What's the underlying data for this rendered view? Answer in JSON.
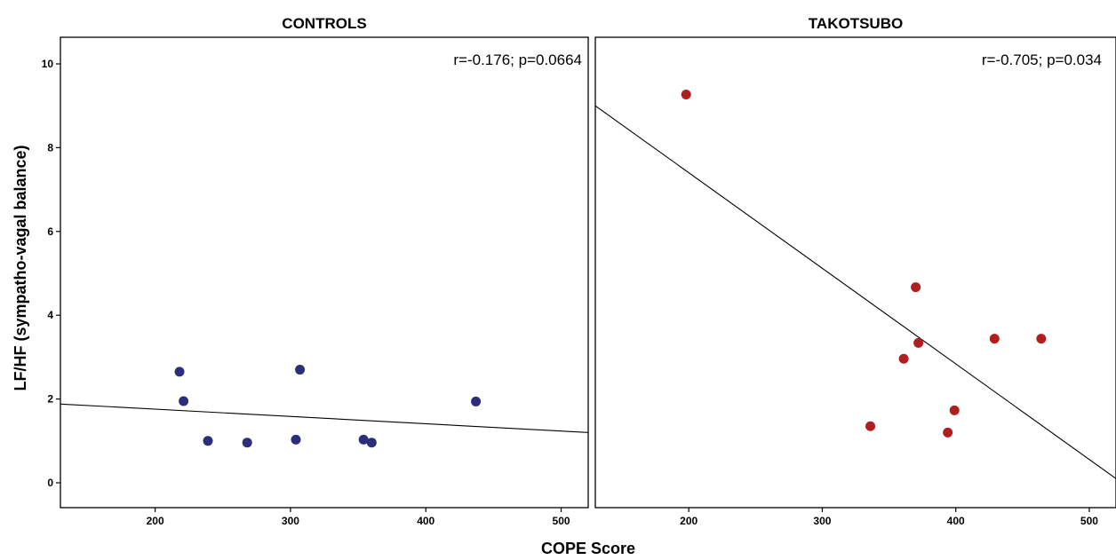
{
  "chart_data": {
    "type": "scatter",
    "xlabel": "COPE Score",
    "ylabel": "LF/HF (sympatho-vagal balance)",
    "xlim": [
      130,
      520
    ],
    "ylim": [
      -0.6,
      10.6
    ],
    "xticks": [
      200,
      300,
      400,
      500
    ],
    "yticks": [
      0,
      2,
      4,
      6,
      8,
      10
    ],
    "grid": false,
    "legend": "none",
    "panels": [
      {
        "title": "CONTROLS",
        "annotation": "r=-0.176; p=0.0664",
        "marker_color": "#2b2e7a",
        "points": [
          {
            "x": 218,
            "y": 2.65
          },
          {
            "x": 221,
            "y": 1.95
          },
          {
            "x": 239,
            "y": 1.0
          },
          {
            "x": 268,
            "y": 0.96
          },
          {
            "x": 304,
            "y": 1.03
          },
          {
            "x": 307,
            "y": 2.7
          },
          {
            "x": 354,
            "y": 1.03
          },
          {
            "x": 360,
            "y": 0.96
          },
          {
            "x": 437,
            "y": 1.94
          }
        ],
        "fit_line": [
          {
            "x": 130,
            "y": 1.88
          },
          {
            "x": 520,
            "y": 1.2
          }
        ]
      },
      {
        "title": "TAKOTSUBO",
        "annotation": "r=-0.705; p=0.034",
        "marker_color": "#b01e1e",
        "points": [
          {
            "x": 198,
            "y": 9.27
          },
          {
            "x": 336,
            "y": 1.35
          },
          {
            "x": 361,
            "y": 2.96
          },
          {
            "x": 370,
            "y": 4.67
          },
          {
            "x": 372,
            "y": 3.34
          },
          {
            "x": 394,
            "y": 1.2
          },
          {
            "x": 399,
            "y": 1.73
          },
          {
            "x": 429,
            "y": 3.44
          },
          {
            "x": 464,
            "y": 3.44
          }
        ],
        "fit_line": [
          {
            "x": 130,
            "y": 9.0
          },
          {
            "x": 520,
            "y": 0.1
          }
        ]
      }
    ]
  }
}
